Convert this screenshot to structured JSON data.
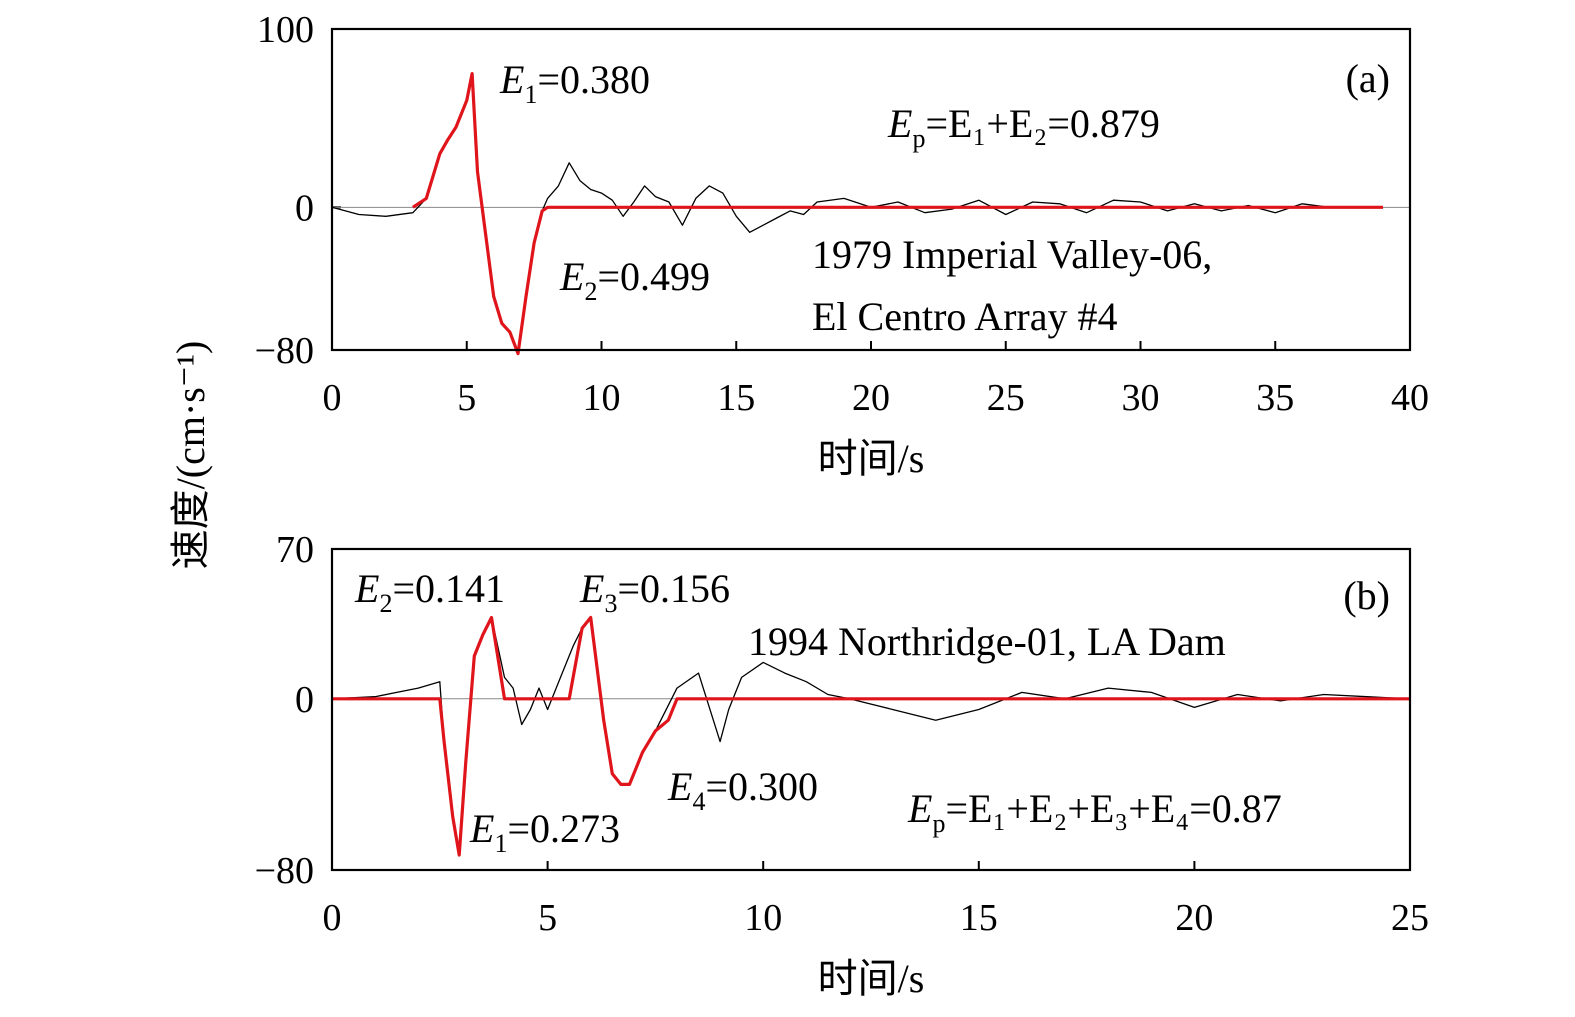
{
  "ylabel": "速度/(cm·s⁻¹)",
  "colors": {
    "full_record": "#000000",
    "pulse": "#e0141b",
    "zero_line": "#888888"
  },
  "chart_data": [
    {
      "type": "line",
      "panel_label": "(a)",
      "xlabel": "时间/s",
      "xlim": [
        0,
        40
      ],
      "ylim": [
        -80,
        100
      ],
      "xticks": [
        0,
        5,
        10,
        15,
        20,
        25,
        30,
        35,
        40
      ],
      "yticks": [
        -80,
        0,
        100
      ],
      "record": "1979 Imperial Valley-06,",
      "station": "El Centro Array #4",
      "energy_sum": {
        "prefix": "E",
        "sub": "p",
        "rhs": "=E₁+E₂=0.879"
      },
      "energy_labels": [
        {
          "main": "E",
          "sub": "1",
          "value": "=0.380"
        },
        {
          "main": "E",
          "sub": "2",
          "value": "=0.499"
        }
      ],
      "series": [
        {
          "x": [
            0,
            1,
            2,
            3,
            3.5,
            4,
            4.3,
            4.6,
            5,
            5.2,
            5.4,
            5.7,
            6,
            6.3,
            6.6,
            6.9,
            7.2,
            7.5,
            7.8,
            8,
            8.4,
            8.8,
            9.2,
            9.6,
            10,
            10.4,
            10.8,
            11.2,
            11.6,
            12,
            12.5,
            13,
            13.5,
            14,
            14.5,
            15,
            15.5,
            16,
            16.5,
            17,
            17.5,
            18,
            19,
            20,
            21,
            22,
            23,
            24,
            25,
            26,
            27,
            28,
            29,
            30,
            31,
            32,
            33,
            34,
            35,
            36,
            37
          ],
          "y": [
            0,
            -4,
            -5,
            -3,
            5,
            30,
            38,
            45,
            60,
            75,
            20,
            -15,
            -50,
            -65,
            -70,
            -82,
            -50,
            -20,
            -2,
            5,
            12,
            25,
            15,
            10,
            8,
            4,
            -5,
            3,
            12,
            6,
            3,
            -10,
            5,
            12,
            8,
            -5,
            -14,
            -10,
            -6,
            -2,
            -4,
            3,
            5,
            0,
            3,
            -3,
            -1,
            4,
            -4,
            3,
            2,
            -3,
            4,
            3,
            -2,
            2,
            -2,
            1,
            -3,
            2,
            0
          ]
        },
        {
          "x": [
            3,
            3.5,
            4,
            4.3,
            4.6,
            5,
            5.2,
            5.4,
            5.7,
            6,
            6.3,
            6.6,
            6.9,
            7.2,
            7.5,
            7.8,
            8,
            39
          ],
          "y": [
            0,
            5,
            30,
            38,
            45,
            60,
            75,
            20,
            -15,
            -50,
            -65,
            -70,
            -82,
            -50,
            -20,
            -2,
            0,
            0
          ]
        }
      ]
    },
    {
      "type": "line",
      "panel_label": "(b)",
      "xlabel": "时间/s",
      "xlim": [
        0,
        25
      ],
      "ylim": [
        -80,
        70
      ],
      "xticks": [
        0,
        5,
        10,
        15,
        20,
        25
      ],
      "yticks": [
        -80,
        0,
        70
      ],
      "record": "1994 Northridge-01, LA Dam",
      "energy_sum": {
        "prefix": "E",
        "sub": "p",
        "rhs": "=E₁+E₂+E₃+E₄=0.87"
      },
      "energy_labels": [
        {
          "main": "E",
          "sub": "2",
          "value": "=0.141"
        },
        {
          "main": "E",
          "sub": "3",
          "value": "=0.156"
        },
        {
          "main": "E",
          "sub": "4",
          "value": "=0.300"
        },
        {
          "main": "E",
          "sub": "1",
          "value": "=0.273"
        }
      ],
      "series": [
        {
          "x": [
            0,
            1,
            1.5,
            2,
            2.5,
            2.6,
            2.8,
            2.95,
            3.1,
            3.3,
            3.5,
            3.7,
            4,
            4.2,
            4.4,
            4.6,
            4.8,
            5,
            5.3,
            5.6,
            5.8,
            6,
            6.3,
            6.5,
            6.7,
            6.9,
            7.2,
            7.5,
            8,
            8.5,
            9,
            9.2,
            9.5,
            10,
            10.5,
            11,
            11.5,
            12,
            13,
            14,
            15,
            16,
            17,
            18,
            19,
            20,
            21,
            22,
            23,
            24,
            25
          ],
          "y": [
            0,
            1,
            3,
            5,
            8,
            -20,
            -55,
            -73,
            -30,
            20,
            30,
            38,
            10,
            5,
            -12,
            -5,
            5,
            -5,
            10,
            25,
            33,
            38,
            -10,
            -35,
            -40,
            -40,
            -25,
            -15,
            5,
            12,
            -20,
            -5,
            10,
            17,
            12,
            8,
            2,
            0,
            -5,
            -10,
            -5,
            3,
            0,
            5,
            3,
            -4,
            2,
            -1,
            2,
            1,
            0
          ]
        },
        {
          "x": [
            0,
            2.5,
            2.6,
            2.8,
            2.95,
            3.1,
            3.3,
            3.5,
            3.7,
            4,
            5.5,
            5.8,
            6,
            6.3,
            6.5,
            6.7,
            6.9,
            7.2,
            7.5,
            7.8,
            8,
            25
          ],
          "y": [
            0,
            0,
            -20,
            -55,
            -73,
            -30,
            20,
            30,
            38,
            0,
            0,
            33,
            38,
            -10,
            -35,
            -40,
            -40,
            -25,
            -15,
            -10,
            0,
            0
          ]
        }
      ]
    }
  ]
}
